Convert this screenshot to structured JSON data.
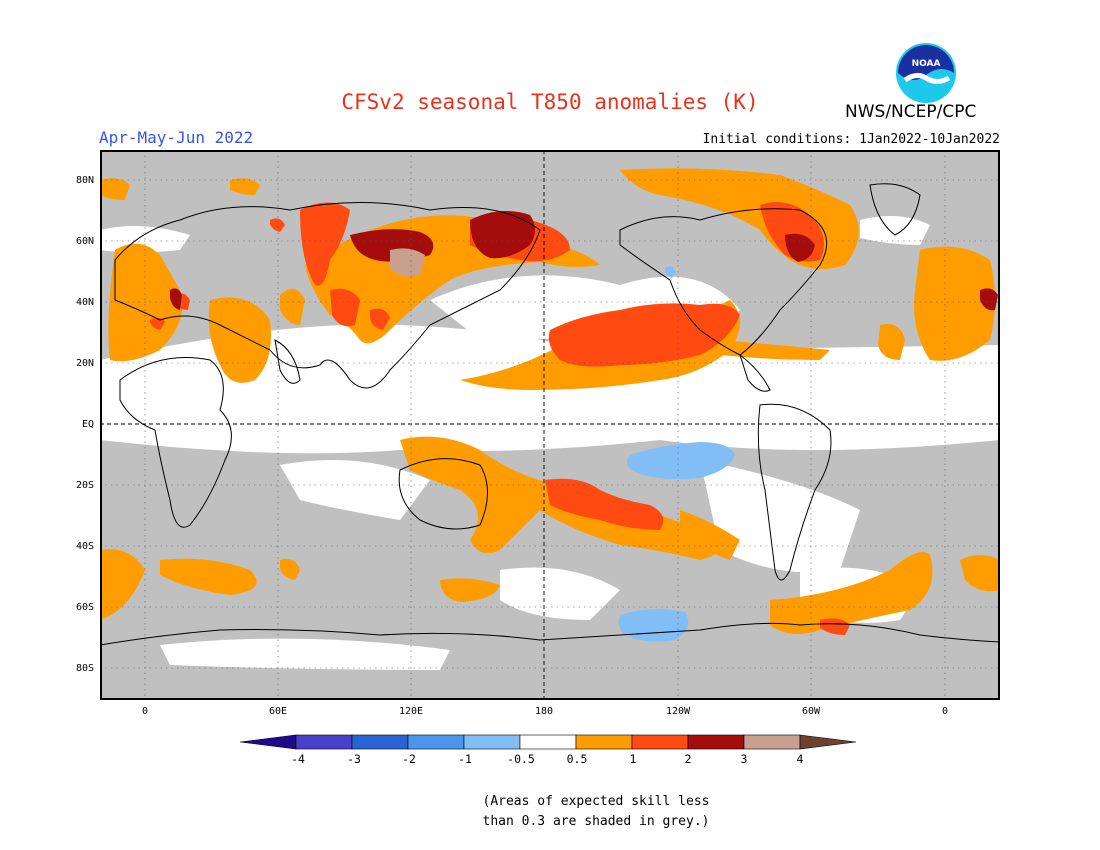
{
  "title": "CFSv2 seasonal T850 anomalies (K)",
  "agency": "NWS/NCEP/CPC",
  "logo_text": "NOAA",
  "season": "Apr-May-Jun 2022",
  "initial_conditions": "Initial conditions: 1Jan2022-10Jan2022",
  "lat_labels": [
    "80N",
    "60N",
    "40N",
    "20N",
    "EQ",
    "20S",
    "40S",
    "60S",
    "80S"
  ],
  "lon_labels": [
    "0",
    "60E",
    "120E",
    "180",
    "120W",
    "60W",
    "0"
  ],
  "colorbar": {
    "labels": [
      "-4",
      "-3",
      "-2",
      "-1",
      "-0.5",
      "0.5",
      "1",
      "2",
      "3",
      "4"
    ],
    "colors": [
      "#1e0a8c",
      "#4a3fc8",
      "#2a64d2",
      "#4a96ec",
      "#80bef5",
      "#ffffff",
      "#ff9c00",
      "#ff4a12",
      "#a50c0c",
      "#c8a090",
      "#6e4030"
    ]
  },
  "colors": {
    "grey_low_skill": "#c0c0c0",
    "orange": "#ff9c00",
    "red": "#ff4a12",
    "dark_red": "#a50c0c",
    "tan": "#c8a090",
    "light_blue": "#80bef5"
  },
  "footnote": {
    "line1": "(Areas of expected skill less",
    "line2": "than 0.3 are shaded in grey.)"
  }
}
